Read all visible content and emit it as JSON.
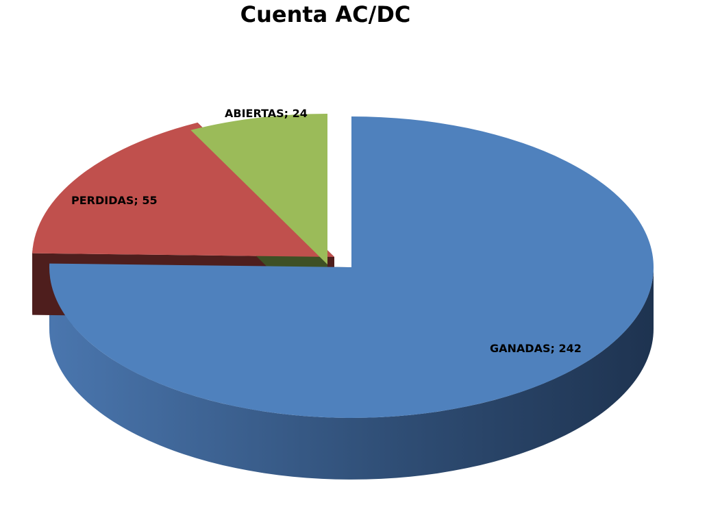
{
  "chart_data": {
    "type": "pie",
    "title": "Cuenta AC/DC",
    "label_separator": "; ",
    "slices": [
      {
        "label": "GANADAS",
        "value": 242,
        "color": "#4F81BD",
        "exploded": false
      },
      {
        "label": "PERDIDAS",
        "value": 55,
        "color": "#C0504D",
        "exploded": true
      },
      {
        "label": "ABIERTAS",
        "value": 24,
        "color": "#9BBB59",
        "exploded": true
      }
    ],
    "legend": "none",
    "three_d": true
  }
}
